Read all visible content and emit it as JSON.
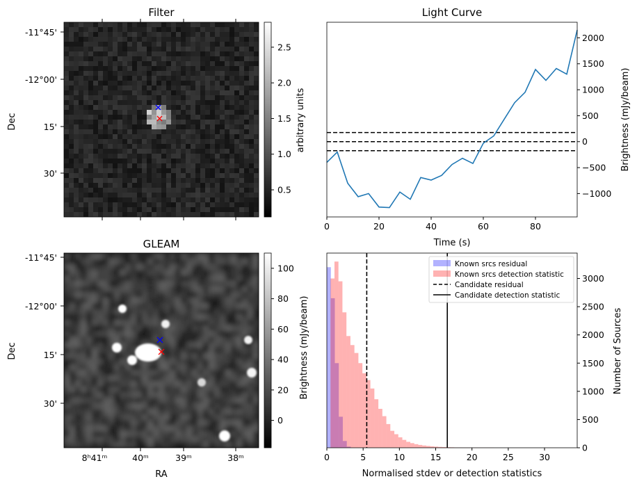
{
  "chart_data": [
    {
      "type": "heatmap",
      "title": "Filter",
      "xlabel": "",
      "ylabel": "Dec",
      "yticks": [
        "-11°45'",
        "-12°00'",
        "15'",
        "30'"
      ],
      "colorbar": {
        "label": "arbitrary units",
        "range": [
          0.12,
          2.85
        ],
        "ticks": [
          "0.5",
          "1.0",
          "1.5",
          "2.0",
          "2.5"
        ]
      },
      "markers": [
        {
          "name": "blue-x",
          "color": "#0000ff"
        },
        {
          "name": "red-x",
          "color": "#ff0000"
        }
      ],
      "grid": false
    },
    {
      "type": "line",
      "title": "Light Curve",
      "xlabel": "Time (s)",
      "ylabel": "Brightness (mJy/beam)",
      "xlim": [
        0,
        96
      ],
      "ylim": [
        -1450,
        2300
      ],
      "xticks": [
        "0",
        "20",
        "40",
        "60",
        "80"
      ],
      "yticks": [
        "−1000",
        "−500",
        "0",
        "500",
        "1000",
        "1500",
        "2000"
      ],
      "series": [
        {
          "color": "#1f77b4",
          "x": [
            0,
            4,
            8,
            12,
            16,
            20,
            24,
            28,
            32,
            36,
            40,
            44,
            48,
            52,
            56,
            60,
            64,
            68,
            72,
            76,
            80,
            84,
            88,
            92,
            96
          ],
          "y": [
            -400,
            -200,
            -800,
            -1060,
            -1000,
            -1260,
            -1270,
            -970,
            -1110,
            -690,
            -740,
            -650,
            -440,
            -320,
            -420,
            -30,
            110,
            430,
            750,
            950,
            1390,
            1180,
            1410,
            1300,
            2150
          ]
        }
      ],
      "hlines": [
        {
          "y": 175,
          "style": "dashed"
        },
        {
          "y": 0,
          "style": "dashed"
        },
        {
          "y": -175,
          "style": "dashed"
        }
      ],
      "grid": false
    },
    {
      "type": "heatmap",
      "title": "GLEAM",
      "xlabel": "RA",
      "ylabel": "Dec",
      "yticks": [
        "-11°45'",
        "-12°00'",
        "15'",
        "30'"
      ],
      "xticks": [
        "8ʰ41ᵐ",
        "40ᵐ",
        "39ᵐ",
        "38ᵐ"
      ],
      "colorbar": {
        "label": "Brightness (mJy/beam)",
        "range": [
          -18,
          110
        ],
        "ticks": [
          "0",
          "20",
          "40",
          "60",
          "80",
          "100"
        ]
      },
      "markers": [
        {
          "name": "blue-x",
          "color": "#0000ff"
        },
        {
          "name": "red-x",
          "color": "#ff0000"
        }
      ],
      "grid": false
    },
    {
      "type": "bar",
      "title": "",
      "xlabel": "Normalised stdev or detection statistics",
      "ylabel": "Number of Sources",
      "xlim": [
        0,
        34.5
      ],
      "ylim": [
        0,
        3450
      ],
      "xticks": [
        "0",
        "5",
        "10",
        "15",
        "20",
        "25",
        "30"
      ],
      "yticks": [
        "0",
        "500",
        "1000",
        "1500",
        "2000",
        "2500",
        "3000"
      ],
      "bin_width": 0.55,
      "series": [
        {
          "name": "Known srcs residual",
          "color": "#0000ff",
          "bin_start": 0.0,
          "values": [
            3200,
            2650,
            1500,
            550,
            120,
            20
          ]
        },
        {
          "name": "Known srcs detection statistic",
          "color": "#ff0000",
          "bin_start": 0.5,
          "values": [
            3000,
            3300,
            2950,
            2400,
            1980,
            1820,
            1680,
            1500,
            1320,
            1200,
            1050,
            860,
            690,
            560,
            420,
            300,
            240,
            185,
            140,
            105,
            82,
            64,
            50,
            40,
            32,
            25,
            20,
            15,
            12,
            10,
            8,
            6,
            5,
            4,
            4,
            3,
            3,
            2,
            2,
            2,
            2,
            1,
            1,
            1,
            1,
            1,
            1,
            1,
            1,
            1,
            1,
            1,
            1,
            1,
            1,
            1,
            1,
            1,
            1,
            1
          ]
        }
      ],
      "vlines": [
        {
          "name": "Candidate residual",
          "x": 5.5,
          "style": "dashed"
        },
        {
          "name": "Candidate detection statistic",
          "x": 16.6,
          "style": "solid"
        }
      ],
      "legend": "top-right",
      "grid": false
    }
  ]
}
